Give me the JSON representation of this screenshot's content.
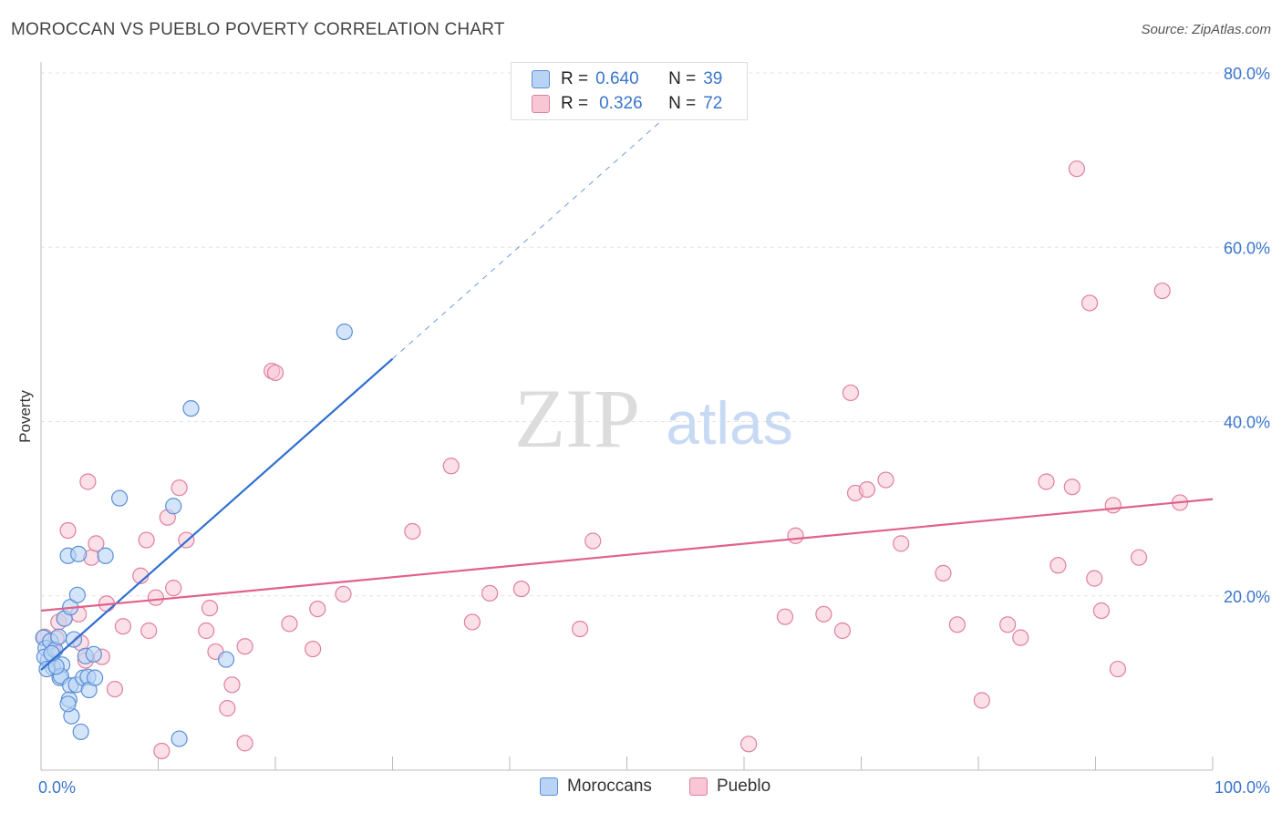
{
  "title": "MOROCCAN VS PUEBLO POVERTY CORRELATION CHART",
  "source": "Source: ZipAtlas.com",
  "watermark": {
    "zip": "ZIP",
    "atlas": "atlas"
  },
  "legend": {
    "rows": [
      {
        "r_label": "R =",
        "r_value": "0.640",
        "n_label": "N =",
        "n_value": "39"
      },
      {
        "r_label": "R =",
        "r_value": "0.326",
        "n_label": "N =",
        "n_value": "72"
      }
    ]
  },
  "bottom_legend": {
    "series1": "Moroccans",
    "series2": "Pueblo"
  },
  "colors": {
    "blue_fill": "#b9d3f5",
    "blue_stroke": "#5b8fd6",
    "blue_line": "#2f6fd0",
    "pink_fill": "#f8c6d5",
    "pink_stroke": "#e07f9f",
    "pink_line": "#e0628a",
    "tick_label": "#3a76cc"
  },
  "chart_data": {
    "type": "scatter",
    "title": "MOROCCAN VS PUEBLO POVERTY CORRELATION CHART",
    "xlabel": "",
    "ylabel": "Poverty",
    "xlim": [
      0,
      100
    ],
    "ylim": [
      0,
      80
    ],
    "x_tick_labels": [
      "0.0%",
      "100.0%"
    ],
    "y_ticks": [
      20,
      40,
      60,
      80
    ],
    "y_tick_labels": [
      "20.0%",
      "40.0%",
      "60.0%",
      "80.0%"
    ],
    "series": [
      {
        "name": "Moroccans",
        "r": 0.64,
        "n": 39,
        "trend": {
          "x0": 0,
          "y0": 11.5,
          "x1": 30,
          "y1": 47.2,
          "dashed_to_x": 55
        },
        "points": [
          [
            0.2,
            15.2
          ],
          [
            0.4,
            14.0
          ],
          [
            0.6,
            12.6
          ],
          [
            0.3,
            13.0
          ],
          [
            0.8,
            14.8
          ],
          [
            1.0,
            11.8
          ],
          [
            1.2,
            13.8
          ],
          [
            0.5,
            11.6
          ],
          [
            1.5,
            15.3
          ],
          [
            1.8,
            12.1
          ],
          [
            1.6,
            10.6
          ],
          [
            1.7,
            10.8
          ],
          [
            2.0,
            17.4
          ],
          [
            2.3,
            24.6
          ],
          [
            2.5,
            9.7
          ],
          [
            2.4,
            8.1
          ],
          [
            2.6,
            6.2
          ],
          [
            2.3,
            7.6
          ],
          [
            2.5,
            18.7
          ],
          [
            2.8,
            15.0
          ],
          [
            3.0,
            9.8
          ],
          [
            3.1,
            20.1
          ],
          [
            3.2,
            24.8
          ],
          [
            3.4,
            4.4
          ],
          [
            3.6,
            10.6
          ],
          [
            3.8,
            13.1
          ],
          [
            4.0,
            10.7
          ],
          [
            4.1,
            9.2
          ],
          [
            4.5,
            13.3
          ],
          [
            4.6,
            10.6
          ],
          [
            5.5,
            24.6
          ],
          [
            6.7,
            31.2
          ],
          [
            11.3,
            30.3
          ],
          [
            11.8,
            3.6
          ],
          [
            12.8,
            41.5
          ],
          [
            15.8,
            12.7
          ],
          [
            25.9,
            50.3
          ],
          [
            1.3,
            11.9
          ],
          [
            0.9,
            13.4
          ]
        ]
      },
      {
        "name": "Pueblo",
        "r": 0.326,
        "n": 72,
        "trend": {
          "x0": 0,
          "y0": 18.3,
          "x1": 100,
          "y1": 31.1
        },
        "points": [
          [
            0.3,
            15.3
          ],
          [
            1.0,
            13.9
          ],
          [
            1.3,
            15.1
          ],
          [
            1.5,
            17.0
          ],
          [
            2.0,
            17.4
          ],
          [
            2.3,
            27.5
          ],
          [
            3.2,
            17.9
          ],
          [
            3.4,
            14.6
          ],
          [
            3.8,
            12.6
          ],
          [
            4.0,
            33.1
          ],
          [
            4.3,
            24.4
          ],
          [
            4.7,
            26.0
          ],
          [
            5.2,
            13.0
          ],
          [
            5.6,
            19.1
          ],
          [
            6.3,
            9.3
          ],
          [
            7.0,
            16.5
          ],
          [
            8.5,
            22.3
          ],
          [
            9.0,
            26.4
          ],
          [
            9.2,
            16.0
          ],
          [
            9.8,
            19.8
          ],
          [
            10.3,
            2.2
          ],
          [
            10.8,
            29.0
          ],
          [
            11.3,
            20.9
          ],
          [
            11.8,
            32.4
          ],
          [
            12.4,
            26.4
          ],
          [
            14.1,
            16.0
          ],
          [
            14.4,
            18.6
          ],
          [
            14.9,
            13.6
          ],
          [
            15.9,
            7.1
          ],
          [
            16.3,
            9.8
          ],
          [
            17.4,
            14.2
          ],
          [
            17.4,
            3.1
          ],
          [
            19.7,
            45.8
          ],
          [
            20.0,
            45.6
          ],
          [
            21.2,
            16.8
          ],
          [
            23.2,
            13.9
          ],
          [
            23.6,
            18.5
          ],
          [
            25.8,
            20.2
          ],
          [
            31.7,
            27.4
          ],
          [
            35.0,
            34.9
          ],
          [
            36.8,
            17.0
          ],
          [
            38.3,
            20.3
          ],
          [
            41.0,
            20.8
          ],
          [
            46.0,
            16.2
          ],
          [
            47.1,
            26.3
          ],
          [
            60.4,
            3.0
          ],
          [
            63.5,
            17.6
          ],
          [
            64.4,
            26.9
          ],
          [
            66.8,
            17.9
          ],
          [
            68.4,
            16.0
          ],
          [
            69.1,
            43.3
          ],
          [
            69.5,
            31.8
          ],
          [
            70.5,
            32.2
          ],
          [
            72.1,
            33.3
          ],
          [
            73.4,
            26.0
          ],
          [
            77.0,
            22.6
          ],
          [
            78.2,
            16.7
          ],
          [
            80.3,
            8.0
          ],
          [
            82.5,
            16.7
          ],
          [
            83.6,
            15.2
          ],
          [
            85.8,
            33.1
          ],
          [
            86.8,
            23.5
          ],
          [
            88.0,
            32.5
          ],
          [
            88.4,
            69.0
          ],
          [
            89.5,
            53.6
          ],
          [
            89.9,
            22.0
          ],
          [
            90.5,
            18.3
          ],
          [
            91.5,
            30.4
          ],
          [
            91.9,
            11.6
          ],
          [
            93.7,
            24.4
          ],
          [
            95.7,
            55.0
          ],
          [
            97.2,
            30.7
          ]
        ]
      }
    ]
  }
}
